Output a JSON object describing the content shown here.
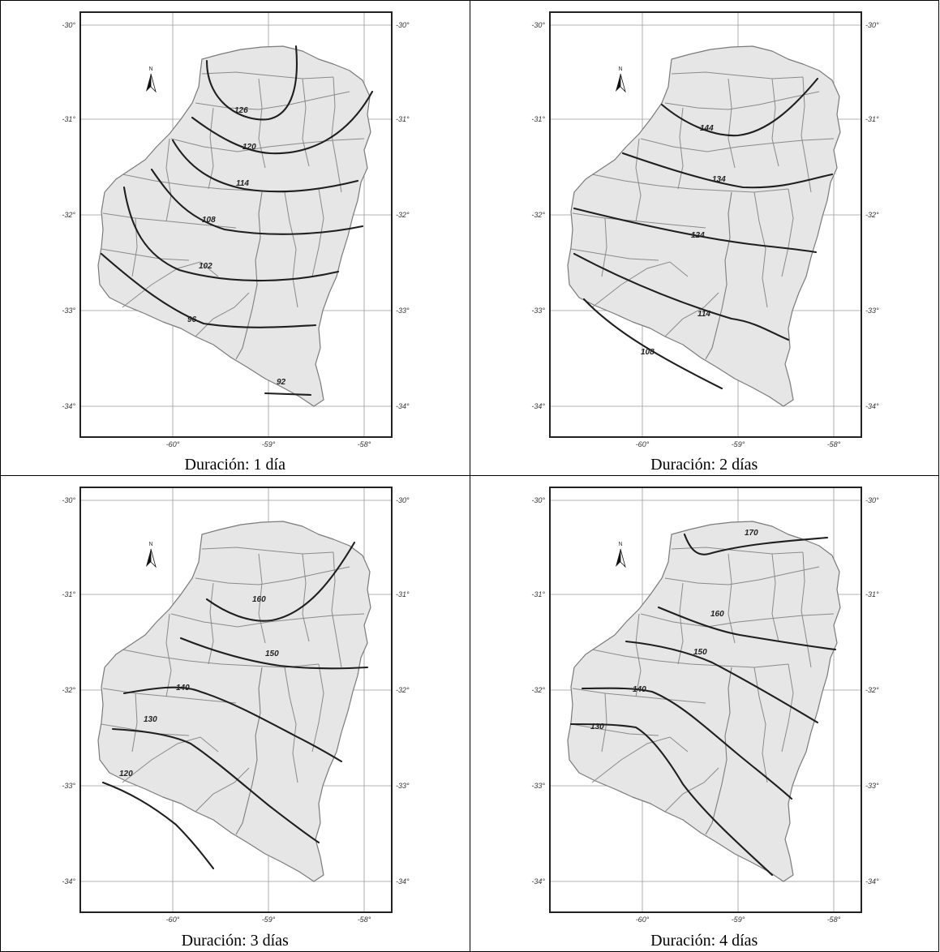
{
  "panels": [
    {
      "caption": "Duración: 1 día",
      "isolines": [
        {
          "value": "126",
          "label": "126"
        },
        {
          "value": "120",
          "label": "120"
        },
        {
          "value": "114",
          "label": "114"
        },
        {
          "value": "108",
          "label": "108"
        },
        {
          "value": "102",
          "label": "102"
        },
        {
          "value": "96",
          "label": "96"
        },
        {
          "value": "92",
          "label": "92"
        }
      ]
    },
    {
      "caption": "Duración: 2 días",
      "isolines": [
        {
          "value": "144",
          "label": "144"
        },
        {
          "value": "134",
          "label": "134"
        },
        {
          "value": "124",
          "label": "124"
        },
        {
          "value": "114",
          "label": "114"
        },
        {
          "value": "108",
          "label": "108"
        }
      ]
    },
    {
      "caption": "Duración: 3 días",
      "isolines": [
        {
          "value": "160",
          "label": "160"
        },
        {
          "value": "150",
          "label": "150"
        },
        {
          "value": "140",
          "label": "140"
        },
        {
          "value": "130",
          "label": "130"
        },
        {
          "value": "120",
          "label": "120"
        }
      ]
    },
    {
      "caption": "Duración: 4 días",
      "isolines": [
        {
          "value": "170",
          "label": "170"
        },
        {
          "value": "160",
          "label": "160"
        },
        {
          "value": "150",
          "label": "150"
        },
        {
          "value": "140",
          "label": "140"
        },
        {
          "value": "130",
          "label": "130"
        }
      ]
    }
  ],
  "axes": {
    "latitude_labels": [
      "-30°",
      "-31°",
      "-32°",
      "-33°",
      "-34°"
    ],
    "longitude_labels": [
      "-60°",
      "-59°",
      "-58°"
    ]
  },
  "north_arrow_label": "N"
}
